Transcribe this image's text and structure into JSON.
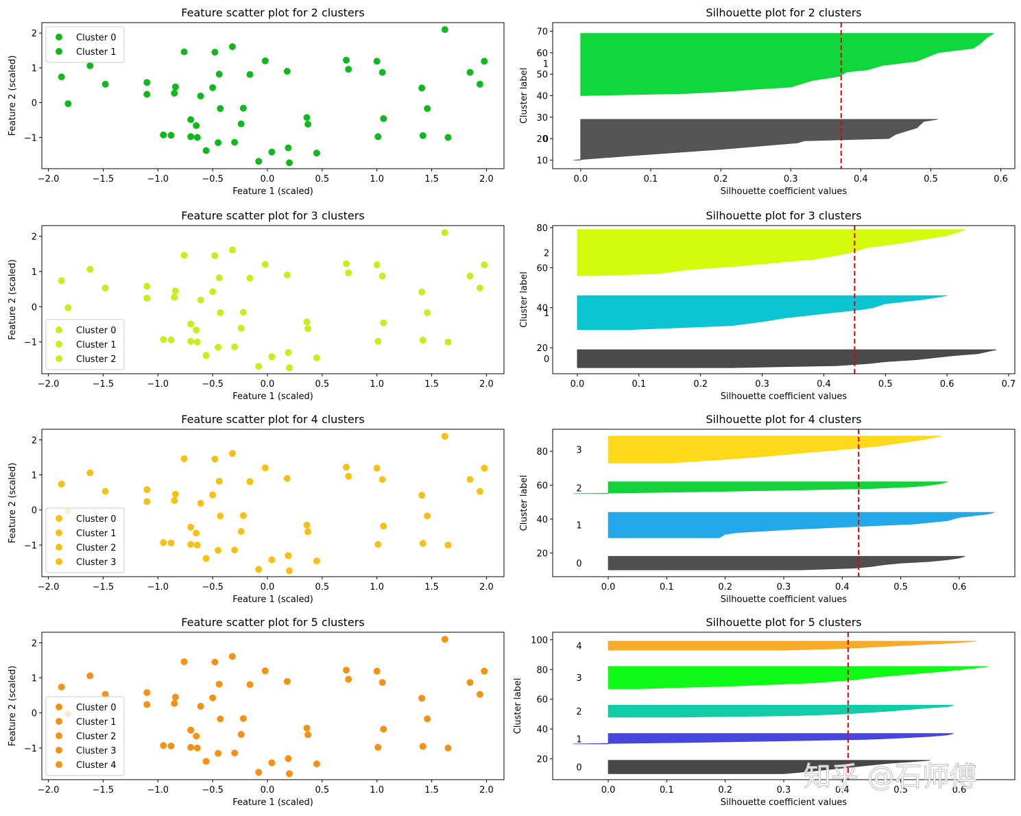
{
  "watermark": "知乎 @石师傅",
  "scatter_points": {
    "x": [
      -1.88,
      -1.82,
      -1.62,
      -1.48,
      -1.1,
      -1.1,
      -0.95,
      -0.88,
      -0.85,
      -0.84,
      -0.76,
      -0.7,
      -0.7,
      -0.65,
      -0.64,
      -0.61,
      -0.56,
      -0.5,
      -0.48,
      -0.45,
      -0.44,
      -0.43,
      -0.32,
      -0.3,
      -0.24,
      -0.22,
      -0.16,
      -0.08,
      -0.02,
      0.04,
      0.18,
      0.19,
      0.2,
      0.36,
      0.37,
      0.45,
      0.72,
      0.74,
      1.0,
      1.01,
      1.05,
      1.06,
      1.41,
      1.42,
      1.46,
      1.62,
      1.65,
      1.85,
      1.94,
      1.98
    ],
    "y": [
      0.74,
      -0.03,
      1.06,
      0.53,
      0.58,
      0.24,
      -0.93,
      -0.94,
      0.27,
      0.45,
      1.46,
      -0.98,
      -0.49,
      -0.66,
      -1.0,
      0.19,
      -1.38,
      0.43,
      1.45,
      -1.15,
      0.82,
      -0.17,
      1.61,
      -1.14,
      -0.61,
      -0.16,
      0.81,
      -1.69,
      1.2,
      -1.42,
      0.9,
      -1.3,
      -1.73,
      -0.43,
      -0.62,
      -1.45,
      1.22,
      0.96,
      1.19,
      -0.98,
      0.87,
      -0.46,
      0.42,
      -0.95,
      -0.17,
      2.1,
      -1.0,
      0.87,
      0.53,
      1.19
    ]
  },
  "chart_data": [
    {
      "type": "scatter",
      "title": "Feature scatter plot for 2 clusters",
      "xlabel": "Feature 1 (scaled)",
      "ylabel": "Feature 2 (scaled)",
      "xlim": [
        -2.06,
        2.16
      ],
      "ylim": [
        -1.9,
        2.3
      ],
      "xticks": [
        -2.0,
        -1.5,
        -1.0,
        -0.5,
        0.0,
        0.5,
        1.0,
        1.5,
        2.0
      ],
      "xtick_labels": [
        "−2.0",
        "−1.5",
        "−1.0",
        "−0.5",
        "0.0",
        "0.5",
        "1.0",
        "1.5",
        "2.0"
      ],
      "yticks": [
        -1,
        0,
        1,
        2
      ],
      "ytick_labels": [
        "−1",
        "0",
        "1",
        "2"
      ],
      "point_color": "#10b91b",
      "legend_position": "upper left",
      "legend": [
        "Cluster 0",
        "Cluster 1"
      ]
    },
    {
      "type": "area",
      "title": "Silhouette plot for 2 clusters",
      "xlabel": "Silhouette coefficient values",
      "ylabel": "Cluster label",
      "xlim": [
        -0.04,
        0.62
      ],
      "ylim": [
        6,
        74
      ],
      "xticks": [
        0.0,
        0.1,
        0.2,
        0.3,
        0.4,
        0.5,
        0.6
      ],
      "xtick_labels": [
        "0.0",
        "0.1",
        "0.2",
        "0.3",
        "0.4",
        "0.5",
        "0.6"
      ],
      "yticks": [
        10,
        20,
        30,
        40,
        50,
        60,
        70
      ],
      "ytick_labels": [
        "10",
        "20",
        "30",
        "40",
        "50",
        "60",
        "70"
      ],
      "average_line": 0.372,
      "clusters": [
        {
          "label": "0",
          "y0": 10,
          "y1": 29,
          "color": "#4c4c4c",
          "label_x": -0.05,
          "label_y": 20,
          "profile": [
            [
              10,
              -0.01
            ],
            [
              12,
              0.07
            ],
            [
              15,
              0.2
            ],
            [
              18,
              0.31
            ],
            [
              19,
              0.32
            ],
            [
              20,
              0.44
            ],
            [
              22,
              0.45
            ],
            [
              25,
              0.48
            ],
            [
              28,
              0.49
            ],
            [
              29,
              0.51
            ]
          ]
        },
        {
          "label": "1",
          "y0": 40,
          "y1": 69,
          "color": "#03d530",
          "label_x": -0.05,
          "label_y": 55,
          "profile": [
            [
              40,
              0.0
            ],
            [
              41,
              0.15
            ],
            [
              42,
              0.21
            ],
            [
              43,
              0.25
            ],
            [
              44,
              0.3
            ],
            [
              47,
              0.33
            ],
            [
              49,
              0.37
            ],
            [
              51,
              0.38
            ],
            [
              52,
              0.41
            ],
            [
              54,
              0.43
            ],
            [
              56,
              0.48
            ],
            [
              60,
              0.51
            ],
            [
              62,
              0.56
            ],
            [
              64,
              0.57
            ],
            [
              67,
              0.58
            ],
            [
              69,
              0.59
            ]
          ]
        }
      ]
    },
    {
      "type": "scatter",
      "title": "Feature scatter plot for 3 clusters",
      "xlabel": "Feature 1 (scaled)",
      "ylabel": "Feature 2 (scaled)",
      "xlim": [
        -2.06,
        2.16
      ],
      "ylim": [
        -1.9,
        2.3
      ],
      "xticks": [
        -2.0,
        -1.5,
        -1.0,
        -0.5,
        0.0,
        0.5,
        1.0,
        1.5,
        2.0
      ],
      "xtick_labels": [
        "−2.0",
        "−1.5",
        "−1.0",
        "−0.5",
        "0.0",
        "0.5",
        "1.0",
        "1.5",
        "2.0"
      ],
      "yticks": [
        -1,
        0,
        1,
        2
      ],
      "ytick_labels": [
        "−1",
        "0",
        "1",
        "2"
      ],
      "point_color": "#c3f019",
      "legend_position": "lower left",
      "legend": [
        "Cluster 0",
        "Cluster 1",
        "Cluster 2"
      ]
    },
    {
      "type": "area",
      "title": "Silhouette plot for 3 clusters",
      "xlabel": "Silhouette coefficient values",
      "ylabel": "Cluster label",
      "xlim": [
        -0.04,
        0.71
      ],
      "ylim": [
        7,
        81
      ],
      "xticks": [
        0.0,
        0.1,
        0.2,
        0.3,
        0.4,
        0.5,
        0.6,
        0.7
      ],
      "xtick_labels": [
        "0.0",
        "0.1",
        "0.2",
        "0.3",
        "0.4",
        "0.5",
        "0.6",
        "0.7"
      ],
      "yticks": [
        20,
        40,
        60,
        80
      ],
      "ytick_labels": [
        "20",
        "40",
        "60",
        "80"
      ],
      "average_line": 0.45,
      "clusters": [
        {
          "label": "0",
          "y0": 10,
          "y1": 19,
          "color": "#404040",
          "label_x": -0.05,
          "label_y": 14.5,
          "profile": [
            [
              10,
              0.25
            ],
            [
              11,
              0.42
            ],
            [
              12,
              0.47
            ],
            [
              13,
              0.5
            ],
            [
              14,
              0.55
            ],
            [
              15,
              0.58
            ],
            [
              16,
              0.61
            ],
            [
              17,
              0.65
            ],
            [
              19,
              0.68
            ]
          ]
        },
        {
          "label": "1",
          "y0": 29,
          "y1": 46,
          "color": "#00c2d0",
          "label_x": -0.05,
          "label_y": 37.5,
          "profile": [
            [
              29,
              0.08
            ],
            [
              31,
              0.25
            ],
            [
              33,
              0.3
            ],
            [
              35,
              0.34
            ],
            [
              37,
              0.4
            ],
            [
              39,
              0.46
            ],
            [
              40,
              0.48
            ],
            [
              42,
              0.5
            ],
            [
              44,
              0.56
            ],
            [
              46,
              0.6
            ]
          ]
        },
        {
          "label": "2",
          "y0": 56,
          "y1": 79,
          "color": "#d1fc00",
          "label_x": -0.05,
          "label_y": 67.5,
          "profile": [
            [
              56,
              0.03
            ],
            [
              57,
              0.13
            ],
            [
              59,
              0.18
            ],
            [
              61,
              0.27
            ],
            [
              63,
              0.34
            ],
            [
              64,
              0.38
            ],
            [
              66,
              0.42
            ],
            [
              68,
              0.45
            ],
            [
              70,
              0.47
            ],
            [
              72,
              0.52
            ],
            [
              74,
              0.56
            ],
            [
              76,
              0.6
            ],
            [
              78,
              0.62
            ],
            [
              79,
              0.63
            ]
          ]
        }
      ]
    },
    {
      "type": "scatter",
      "title": "Feature scatter plot for 4 clusters",
      "xlabel": "Feature 1 (scaled)",
      "ylabel": "Feature 2 (scaled)",
      "xlim": [
        -2.06,
        2.16
      ],
      "ylim": [
        -1.9,
        2.3
      ],
      "xticks": [
        -2.0,
        -1.5,
        -1.0,
        -0.5,
        0.0,
        0.5,
        1.0,
        1.5,
        2.0
      ],
      "xtick_labels": [
        "−2.0",
        "−1.5",
        "−1.0",
        "−0.5",
        "0.0",
        "0.5",
        "1.0",
        "1.5",
        "2.0"
      ],
      "yticks": [
        -1,
        0,
        1,
        2
      ],
      "ytick_labels": [
        "−1",
        "0",
        "1",
        "2"
      ],
      "point_color": "#f8c015",
      "legend_position": "lower left",
      "legend": [
        "Cluster 0",
        "Cluster 1",
        "Cluster 2",
        "Cluster 3"
      ]
    },
    {
      "type": "area",
      "title": "Silhouette plot for 4 clusters",
      "xlabel": "Silhouette coefficient values",
      "ylabel": "Cluster label",
      "xlim": [
        -0.095,
        0.695
      ],
      "ylim": [
        6,
        93
      ],
      "xticks": [
        0.0,
        0.1,
        0.2,
        0.3,
        0.4,
        0.5,
        0.6
      ],
      "xtick_labels": [
        "0.0",
        "0.1",
        "0.2",
        "0.3",
        "0.4",
        "0.5",
        "0.6"
      ],
      "yticks": [
        20,
        40,
        60,
        80
      ],
      "ytick_labels": [
        "20",
        "40",
        "60",
        "80"
      ],
      "average_line": 0.428,
      "clusters": [
        {
          "label": "0",
          "y0": 10,
          "y1": 18,
          "color": "#464646",
          "label_x": -0.05,
          "label_y": 14,
          "profile": [
            [
              10,
              0.33
            ],
            [
              11,
              0.42
            ],
            [
              12,
              0.45
            ],
            [
              13,
              0.47
            ],
            [
              14,
              0.5
            ],
            [
              15,
              0.55
            ],
            [
              16,
              0.58
            ],
            [
              17,
              0.6
            ],
            [
              18,
              0.61
            ]
          ]
        },
        {
          "label": "1",
          "y0": 29,
          "y1": 44,
          "color": "#17a3e8",
          "label_x": -0.05,
          "label_y": 36.5,
          "profile": [
            [
              29,
              0.19
            ],
            [
              31,
              0.2
            ],
            [
              32,
              0.22
            ],
            [
              34,
              0.32
            ],
            [
              36,
              0.45
            ],
            [
              37,
              0.52
            ],
            [
              39,
              0.58
            ],
            [
              41,
              0.6
            ],
            [
              43,
              0.65
            ],
            [
              44,
              0.66
            ]
          ]
        },
        {
          "label": "2",
          "y0": 55,
          "y1": 62,
          "color": "#08d032",
          "label_x": -0.05,
          "label_y": 58.5,
          "profile": [
            [
              55,
              -0.06
            ],
            [
              56,
              0.14
            ],
            [
              57,
              0.3
            ],
            [
              58,
              0.45
            ],
            [
              59,
              0.52
            ],
            [
              60,
              0.55
            ],
            [
              61,
              0.57
            ],
            [
              62,
              0.58
            ]
          ]
        },
        {
          "label": "3",
          "y0": 73,
          "y1": 89,
          "color": "#ffd70e",
          "label_x": -0.05,
          "label_y": 81,
          "profile": [
            [
              73,
              0.1
            ],
            [
              75,
              0.19
            ],
            [
              77,
              0.27
            ],
            [
              79,
              0.33
            ],
            [
              81,
              0.4
            ],
            [
              83,
              0.46
            ],
            [
              85,
              0.5
            ],
            [
              87,
              0.54
            ],
            [
              89,
              0.57
            ]
          ]
        }
      ]
    },
    {
      "type": "scatter",
      "title": "Feature scatter plot for 5 clusters",
      "xlabel": "Feature 1 (scaled)",
      "ylabel": "Feature 2 (scaled)",
      "xlim": [
        -2.06,
        2.16
      ],
      "ylim": [
        -1.9,
        2.3
      ],
      "xticks": [
        -2.0,
        -1.5,
        -1.0,
        -0.5,
        0.0,
        0.5,
        1.0,
        1.5,
        2.0
      ],
      "xtick_labels": [
        "−2.0",
        "−1.5",
        "−1.0",
        "−0.5",
        "0.0",
        "0.5",
        "1.0",
        "1.5",
        "2.0"
      ],
      "yticks": [
        -1,
        0,
        1,
        2
      ],
      "ytick_labels": [
        "−1",
        "0",
        "1",
        "2"
      ],
      "point_color": "#f39214",
      "legend_position": "lower left",
      "legend": [
        "Cluster 0",
        "Cluster 1",
        "Cluster 2",
        "Cluster 3",
        "Cluster 4"
      ]
    },
    {
      "type": "area",
      "title": "Silhouette plot for 5 clusters",
      "xlabel": "Silhouette coefficient values",
      "ylabel": "Cluster label",
      "xlim": [
        -0.095,
        0.695
      ],
      "ylim": [
        6,
        105
      ],
      "xticks": [
        0.0,
        0.1,
        0.2,
        0.3,
        0.4,
        0.5,
        0.6
      ],
      "xtick_labels": [
        "0.0",
        "0.1",
        "0.2",
        "0.3",
        "0.4",
        "0.5",
        "0.6"
      ],
      "yticks": [
        20,
        40,
        60,
        80,
        100
      ],
      "ytick_labels": [
        "20",
        "40",
        "60",
        "80",
        "100"
      ],
      "average_line": 0.41,
      "clusters": [
        {
          "label": "0",
          "y0": 10,
          "y1": 19,
          "color": "#3d3d3d",
          "label_x": -0.05,
          "label_y": 14.5,
          "profile": [
            [
              10,
              0.3
            ],
            [
              11,
              0.33
            ],
            [
              13,
              0.38
            ],
            [
              15,
              0.43
            ],
            [
              17,
              0.48
            ],
            [
              18,
              0.52
            ],
            [
              19,
              0.55
            ]
          ]
        },
        {
          "label": "1",
          "y0": 30,
          "y1": 37,
          "color": "#3d3ddc",
          "label_x": -0.05,
          "label_y": 33.5,
          "profile": [
            [
              30,
              -0.06
            ],
            [
              31,
              0.14
            ],
            [
              32,
              0.3
            ],
            [
              33,
              0.44
            ],
            [
              34,
              0.5
            ],
            [
              35,
              0.55
            ],
            [
              36,
              0.58
            ],
            [
              37,
              0.59
            ]
          ]
        },
        {
          "label": "2",
          "y0": 48,
          "y1": 56,
          "color": "#05c9a2",
          "label_x": -0.05,
          "label_y": 52,
          "profile": [
            [
              48,
              0.12
            ],
            [
              49,
              0.32
            ],
            [
              50,
              0.4
            ],
            [
              52,
              0.48
            ],
            [
              54,
              0.54
            ],
            [
              55,
              0.58
            ],
            [
              56,
              0.59
            ]
          ]
        },
        {
          "label": "3",
          "y0": 67,
          "y1": 82,
          "color": "#03fa0b",
          "label_x": -0.05,
          "label_y": 74.5,
          "profile": [
            [
              67,
              0.05
            ],
            [
              69,
              0.22
            ],
            [
              71,
              0.35
            ],
            [
              73,
              0.42
            ],
            [
              75,
              0.46
            ],
            [
              77,
              0.52
            ],
            [
              79,
              0.58
            ],
            [
              81,
              0.63
            ],
            [
              82,
              0.65
            ]
          ]
        },
        {
          "label": "4",
          "y0": 93,
          "y1": 99,
          "color": "#f9a61c",
          "label_x": -0.05,
          "label_y": 96,
          "profile": [
            [
              93,
              0.3
            ],
            [
              94,
              0.4
            ],
            [
              95,
              0.45
            ],
            [
              96,
              0.5
            ],
            [
              97,
              0.55
            ],
            [
              98,
              0.6
            ],
            [
              99,
              0.63
            ]
          ]
        }
      ]
    }
  ]
}
